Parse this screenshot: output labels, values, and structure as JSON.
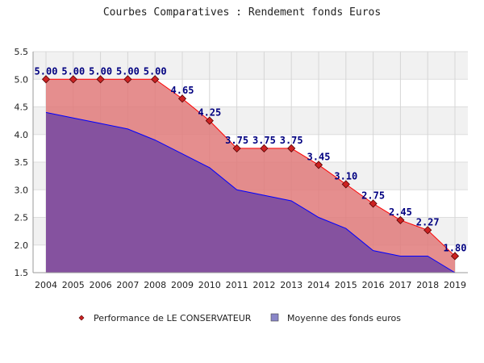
{
  "chart_data": {
    "type": "area",
    "title": "Courbes Comparatives : Rendement fonds Euros",
    "xlabel": "",
    "ylabel": "",
    "categories": [
      "2004",
      "2005",
      "2006",
      "2007",
      "2008",
      "2009",
      "2010",
      "2011",
      "2012",
      "2013",
      "2014",
      "2015",
      "2016",
      "2017",
      "2018",
      "2019"
    ],
    "ylim": [
      1.5,
      5.5
    ],
    "yticks": [
      "1.5",
      "2.0",
      "2.5",
      "3.0",
      "3.5",
      "4.0",
      "4.5",
      "5.0",
      "5.5"
    ],
    "grid": true,
    "legend_position": "bottom",
    "series": [
      {
        "name": "Performance de LE CONSERVATEUR",
        "values": [
          5.0,
          5.0,
          5.0,
          5.0,
          5.0,
          4.65,
          4.25,
          3.75,
          3.75,
          3.75,
          3.45,
          3.1,
          2.75,
          2.45,
          2.27,
          1.8
        ],
        "labels": [
          "5.00",
          "5.00",
          "5.00",
          "5.00",
          "5.00",
          "4.65",
          "4.25",
          "3.75",
          "3.75",
          "3.75",
          "3.45",
          "3.10",
          "2.75",
          "2.45",
          "2.27",
          "1.80"
        ],
        "fill": "#e07a7a",
        "line": "#ff0000",
        "marker": "#cc2222"
      },
      {
        "name": "Moyenne des fonds euros",
        "values": [
          4.4,
          4.3,
          4.2,
          4.1,
          3.9,
          3.65,
          3.4,
          3.0,
          2.9,
          2.8,
          2.5,
          2.3,
          1.9,
          1.8,
          1.8,
          1.5
        ],
        "fill": "#7f4fa0",
        "line": "#0000ff"
      }
    ]
  }
}
